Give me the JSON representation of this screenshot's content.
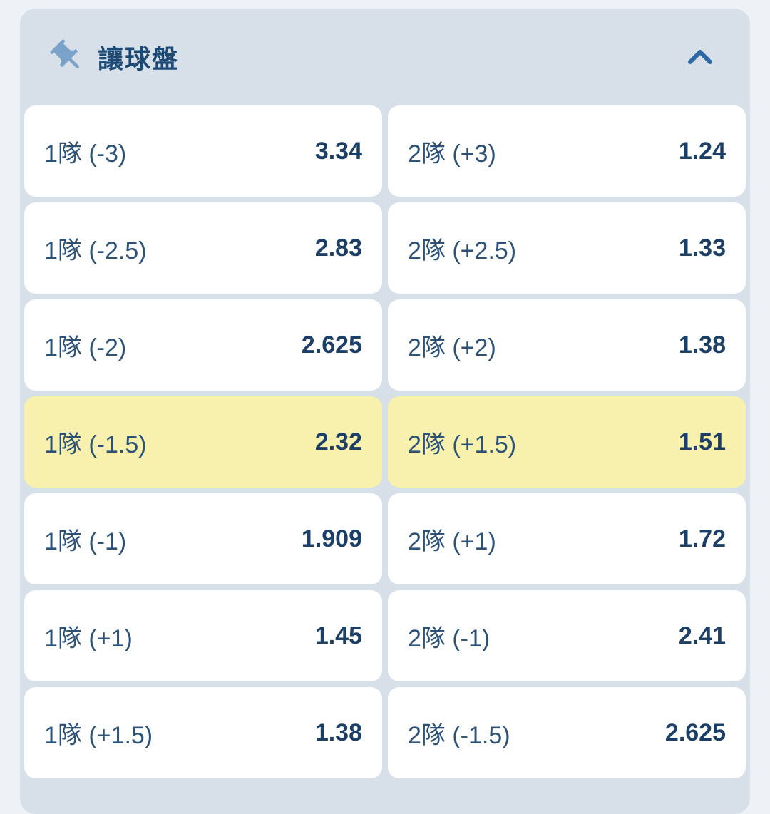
{
  "panel": {
    "title": "讓球盤",
    "collapsed": false
  },
  "colors": {
    "page_bg": "#eef1f5",
    "panel_bg": "#d7dfe9",
    "cell_bg": "#ffffff",
    "selected_bg": "#f7f1ad",
    "title_color": "#1c4a75",
    "label_color": "#2d5278",
    "odds_color": "#1b3f66",
    "pin_icon_color": "#7ba2c8",
    "chevron_color": "#2d6aa5"
  },
  "market": {
    "cells": [
      {
        "label": "1隊 (-3)",
        "odds": "3.34",
        "selected": false
      },
      {
        "label": "2隊 (+3)",
        "odds": "1.24",
        "selected": false
      },
      {
        "label": "1隊 (-2.5)",
        "odds": "2.83",
        "selected": false
      },
      {
        "label": "2隊 (+2.5)",
        "odds": "1.33",
        "selected": false
      },
      {
        "label": "1隊 (-2)",
        "odds": "2.625",
        "selected": false
      },
      {
        "label": "2隊 (+2)",
        "odds": "1.38",
        "selected": false
      },
      {
        "label": "1隊 (-1.5)",
        "odds": "2.32",
        "selected": true
      },
      {
        "label": "2隊 (+1.5)",
        "odds": "1.51",
        "selected": true
      },
      {
        "label": "1隊 (-1)",
        "odds": "1.909",
        "selected": false
      },
      {
        "label": "2隊 (+1)",
        "odds": "1.72",
        "selected": false
      },
      {
        "label": "1隊 (+1)",
        "odds": "1.45",
        "selected": false
      },
      {
        "label": "2隊 (-1)",
        "odds": "2.41",
        "selected": false
      },
      {
        "label": "1隊 (+1.5)",
        "odds": "1.38",
        "selected": false
      },
      {
        "label": "2隊 (-1.5)",
        "odds": "2.625",
        "selected": false
      }
    ]
  }
}
